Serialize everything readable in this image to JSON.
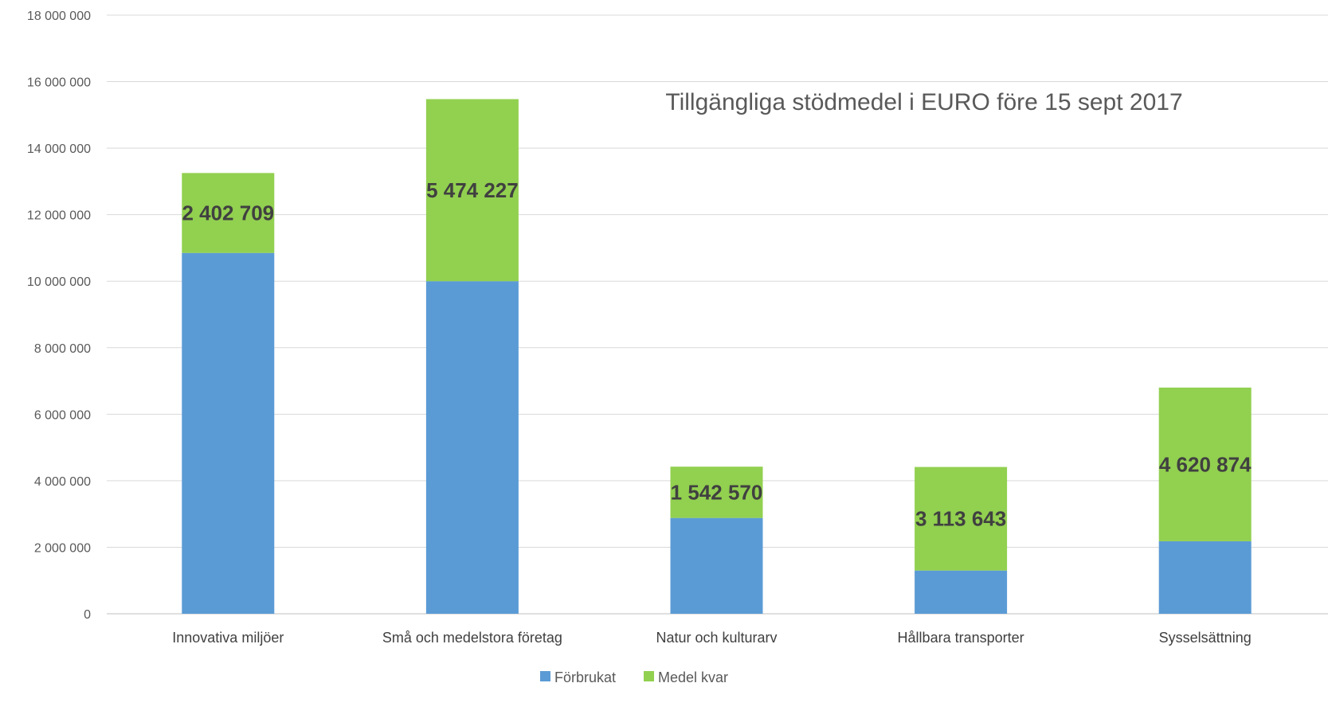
{
  "chart_data": {
    "type": "bar",
    "stacked": true,
    "title": "Tillgängliga stödmedel i EURO före 15 sept 2017",
    "categories": [
      "Innovativa miljöer",
      "Små och medelstora företag",
      "Natur och kulturarv",
      "Hållbara transporter",
      "Sysselsättning"
    ],
    "series": [
      {
        "name": "Förbrukat",
        "color": "#5b9bd5",
        "values": [
          10850000,
          10000000,
          2880000,
          1300000,
          2180000
        ]
      },
      {
        "name": "Medel kvar",
        "color": "#92d050",
        "values": [
          2402709,
          5474227,
          1542570,
          3113643,
          4620874
        ]
      }
    ],
    "data_labels": [
      "2 402 709",
      "5 474 227",
      "1 542 570",
      "3 113 643",
      "4 620 874"
    ],
    "y_ticks": [
      "0",
      "2 000 000",
      "4 000 000",
      "6 000 000",
      "8 000 000",
      "10 000 000",
      "12 000 000",
      "14 000 000",
      "16 000 000",
      "18 000 000"
    ],
    "ylim": [
      0,
      18000000
    ],
    "grid": true,
    "legend_position": "bottom"
  }
}
